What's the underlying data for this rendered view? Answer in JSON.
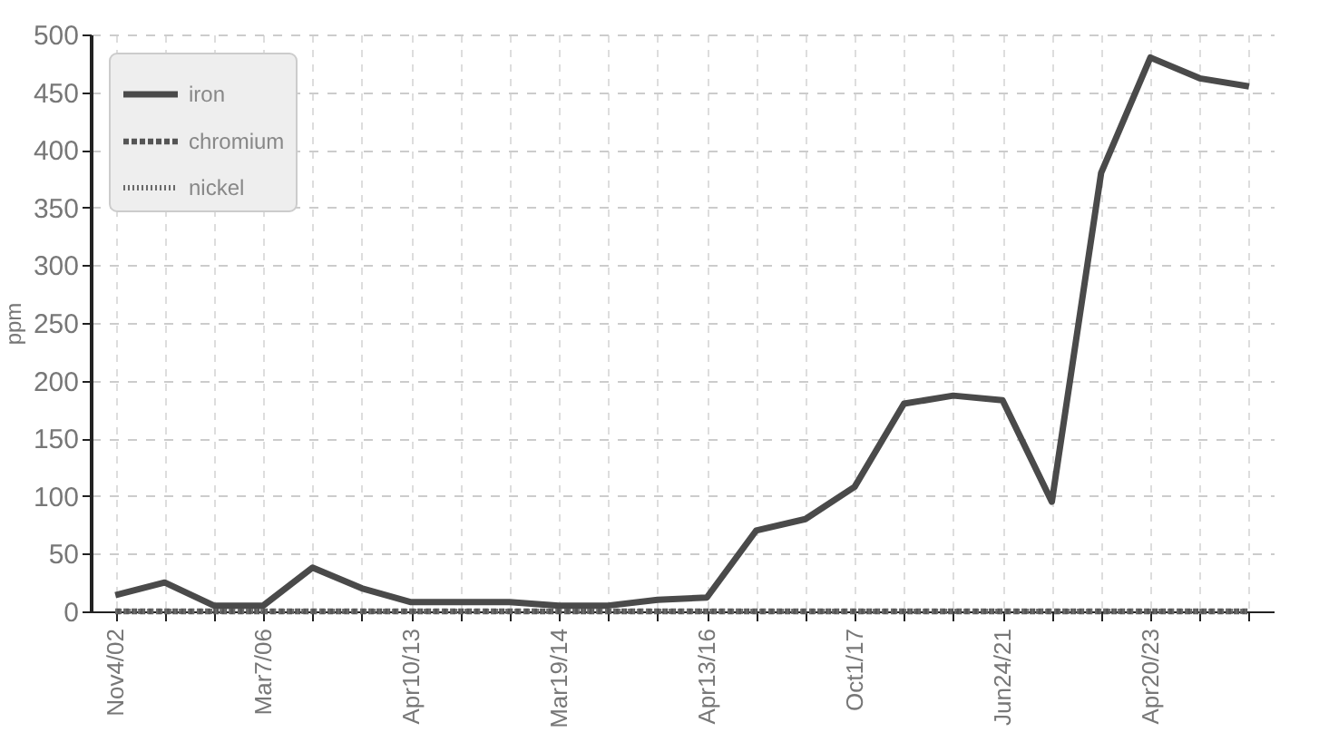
{
  "chart_data": {
    "type": "line",
    "ylabel": "ppm",
    "categories": [
      "Nov4/02",
      null,
      null,
      "Mar7/06",
      null,
      null,
      "Apr10/13",
      null,
      null,
      "Mar19/14",
      null,
      null,
      "Apr13/16",
      null,
      null,
      "Oct1/17",
      null,
      null,
      "Jun24/21",
      null,
      null,
      "Apr20/23",
      null,
      null
    ],
    "series": [
      {
        "name": "iron",
        "color": "#4a4a4a",
        "line_style": "solid",
        "values": [
          14,
          25,
          5,
          5,
          38,
          20,
          8,
          8,
          8,
          5,
          5,
          10,
          12,
          70,
          80,
          108,
          180,
          187,
          183,
          95,
          380,
          480,
          462,
          455
        ]
      },
      {
        "name": "chromium",
        "color": "#555555",
        "line_style": "dashed",
        "values": [
          0,
          0,
          0,
          0,
          0,
          0,
          0,
          0,
          0,
          0,
          0,
          0,
          0,
          0,
          0,
          0,
          0,
          0,
          0,
          0,
          0,
          0,
          0,
          0
        ]
      },
      {
        "name": "nickel",
        "color": "#6a6a6a",
        "line_style": "dotted",
        "values": [
          0,
          0,
          0,
          0,
          0,
          0,
          0,
          0,
          0,
          0,
          0,
          0,
          0,
          0,
          0,
          0,
          0,
          0,
          0,
          0,
          0,
          0,
          0,
          0
        ]
      }
    ],
    "ylim": [
      0,
      500
    ],
    "yticks": [
      0,
      50,
      100,
      150,
      200,
      250,
      300,
      350,
      400,
      450,
      500
    ],
    "grid": true,
    "legend": "top left"
  }
}
